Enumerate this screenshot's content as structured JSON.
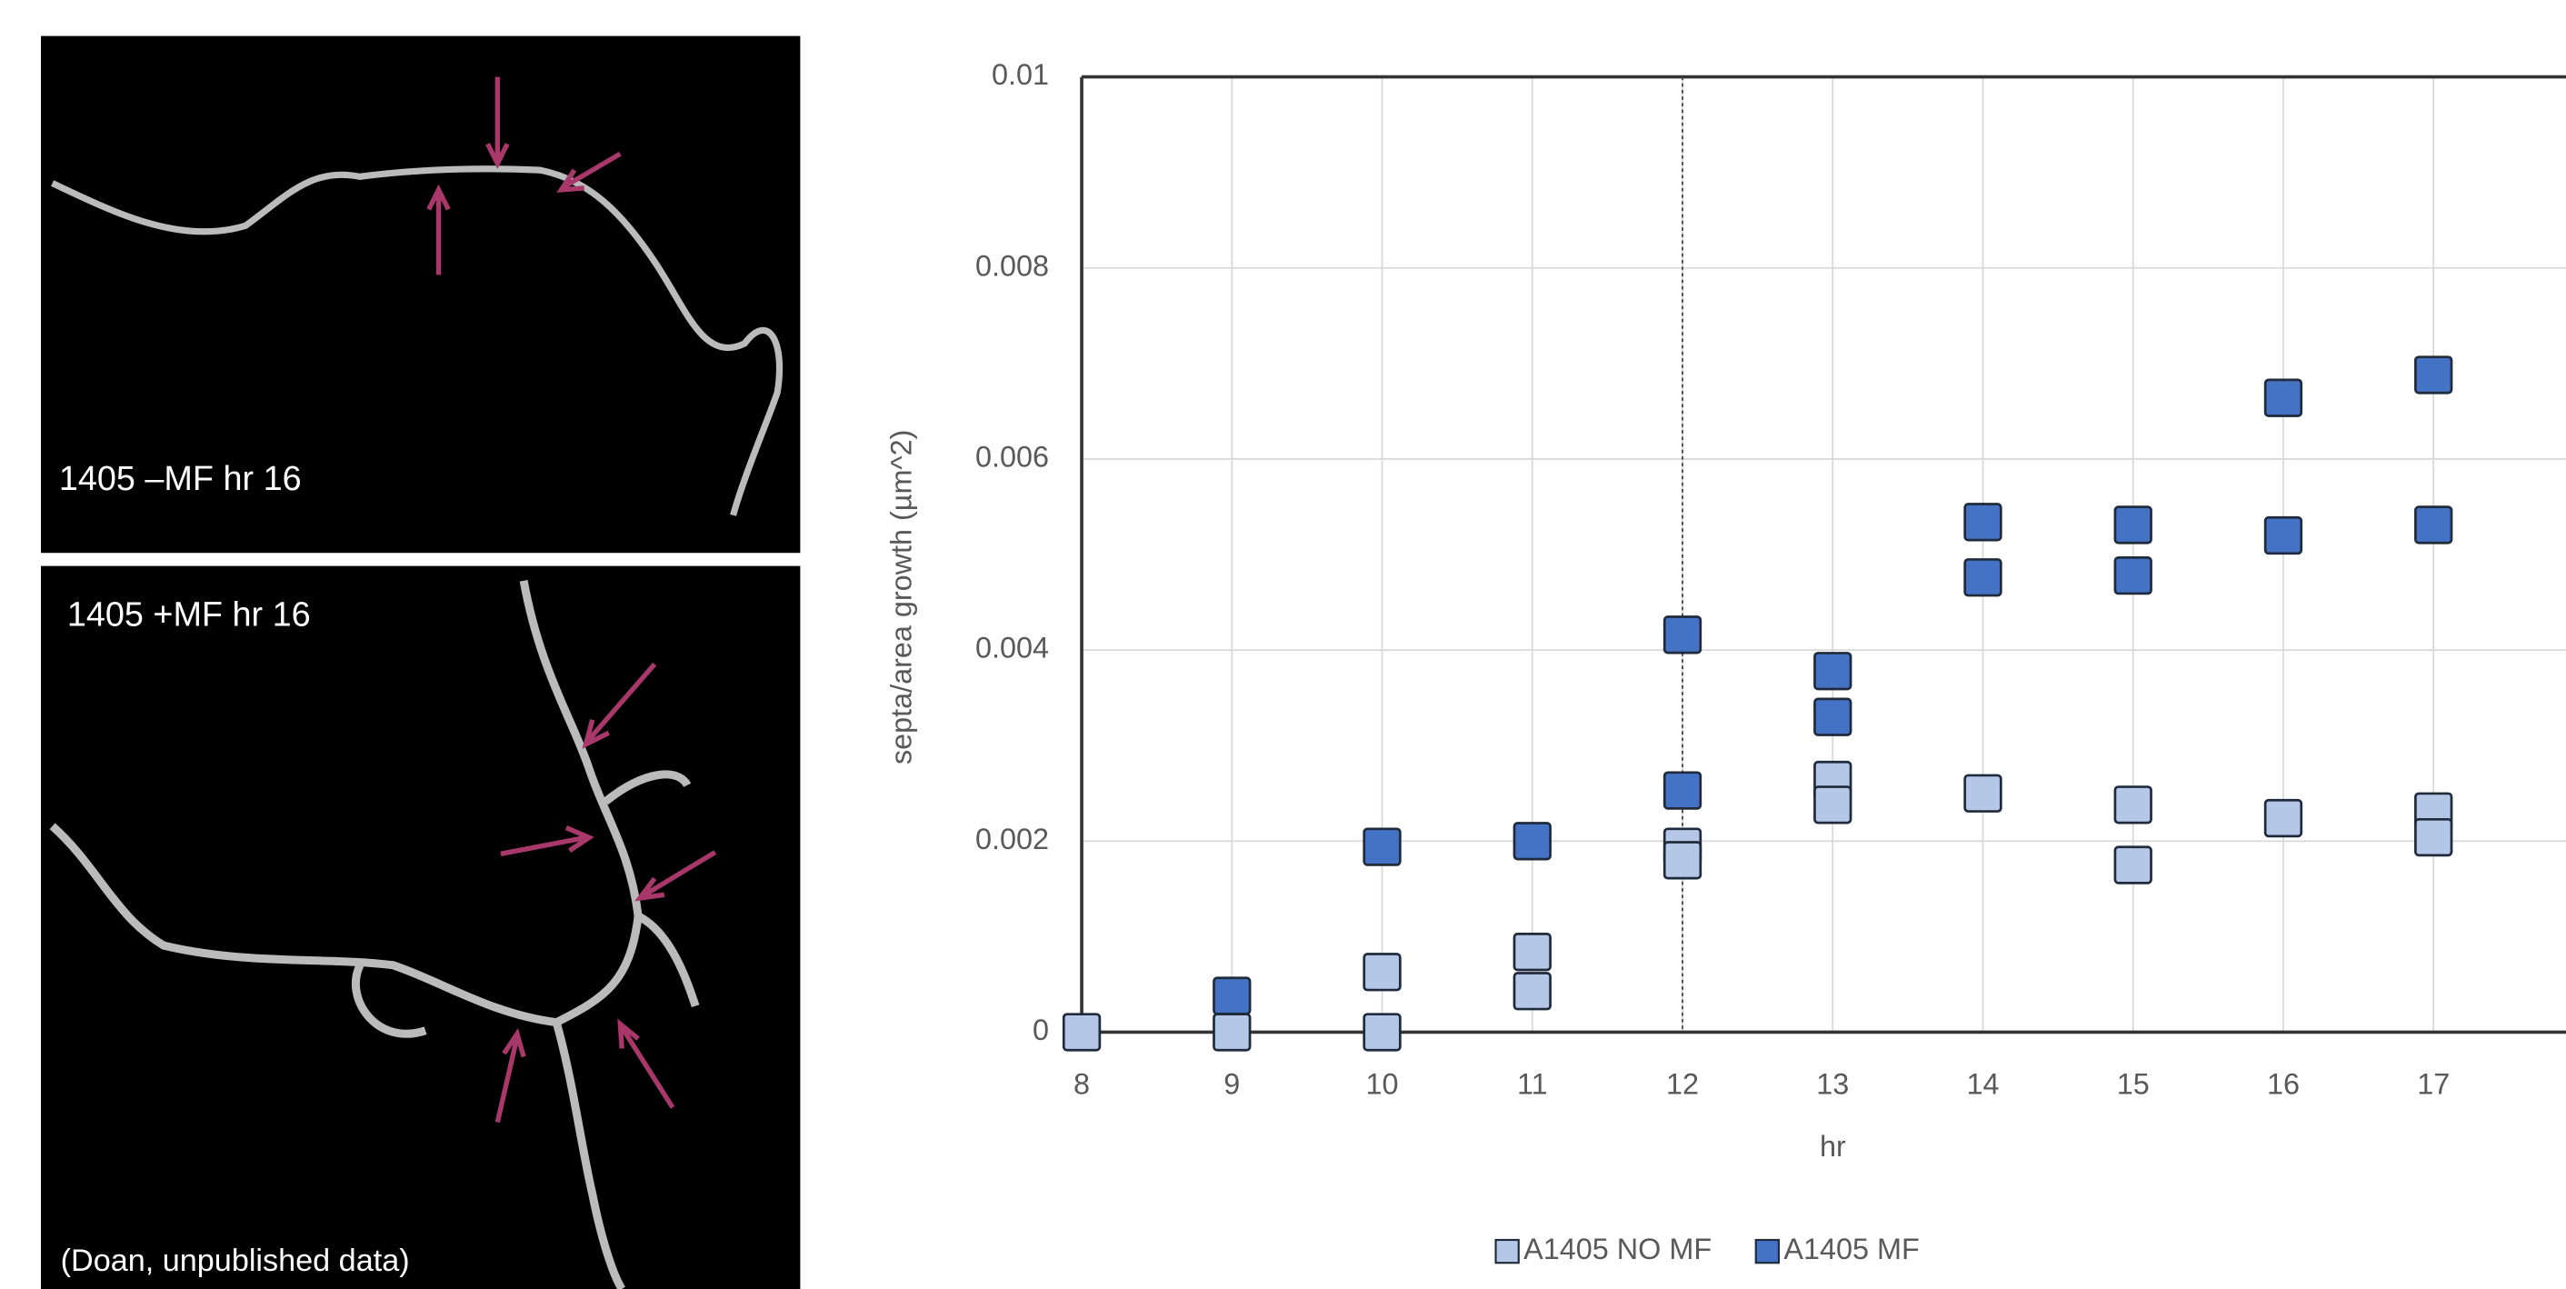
{
  "images": [
    {
      "caption": "1405 –MF hr 16"
    },
    {
      "caption": "1405 +MF hr 16"
    }
  ],
  "credit": "(Doan, unpublished data)",
  "chart_data": {
    "type": "scatter",
    "y_label": "septa/area growth (µm^2)",
    "x_label": "hr",
    "xlim": [
      8,
      18
    ],
    "xticks": [
      8,
      9,
      10,
      11,
      12,
      13,
      14,
      15,
      16,
      17
    ],
    "ylim": [
      0,
      0.01
    ],
    "yticks": [
      0,
      0.002,
      0.004,
      0.006,
      0.008,
      0.01
    ],
    "grid": true,
    "legend": "bottom",
    "vline_x": 12,
    "series": [
      {
        "name": "A1405 NO MF",
        "color": "#b4c7e7",
        "x": [
          8,
          9,
          10,
          10,
          11,
          11,
          12,
          12,
          13,
          13,
          14,
          15,
          15,
          16,
          17,
          17
        ],
        "values": [
          0,
          0,
          0.00063,
          0,
          0.00084,
          0.00043,
          0.00194,
          0.0018,
          0.00264,
          0.00238,
          0.0025,
          0.00238,
          0.00175,
          0.00224,
          0.00231,
          0.00204
        ]
      },
      {
        "name": "A1405 MF",
        "color": "#4472c4",
        "x": [
          9,
          10,
          11,
          12,
          12,
          13,
          13,
          14,
          14,
          15,
          15,
          16,
          16,
          17,
          17
        ],
        "values": [
          0.00038,
          0.00194,
          0.002,
          0.00416,
          0.00253,
          0.00378,
          0.0033,
          0.00534,
          0.00476,
          0.00531,
          0.00478,
          0.00664,
          0.0052,
          0.00688,
          0.00531
        ]
      }
    ]
  }
}
